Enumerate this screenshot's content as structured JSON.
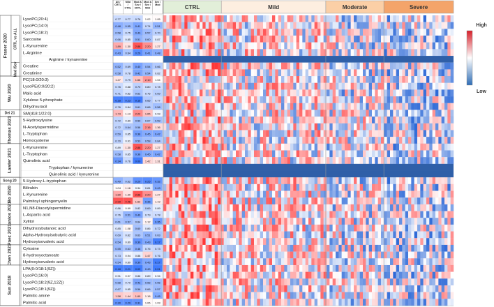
{
  "chart_data": {
    "type": "heatmap",
    "ratio_headers": [
      "All / CRTL",
      "Mild / CTRL",
      "Mod & Sev / CRTL",
      "Mod & Sev / Mild",
      "Sev / Mod"
    ],
    "groups": [
      "CTRL",
      "Mild",
      "Moderate",
      "Severe"
    ],
    "group_colors": [
      "#e2efd9",
      "#fdeee0",
      "#fbcfa6",
      "#f4a46a"
    ],
    "legend": {
      "high": "High",
      "low": "Low",
      "high_color": "#d6202a",
      "low_color": "#2f6db5"
    },
    "row_labels": [
      "LysoPC(20:4)",
      "LysoPC(14:0)",
      "LysoPC(18:2)",
      "Sarcosine",
      "L-Kynurenine",
      "L-Arginine",
      "Arginine / kynurenine",
      "Creatine",
      "Creatinine",
      "PC(18:0/20:3)",
      "LysoPE(0:0/20:2)",
      "Malic acid",
      "Xylulose 5-phosphate",
      "Dihydrouracil",
      "SM(d18:1/22:0)",
      "5-Hydroxylysine",
      "N-Acetylspermidine",
      "L-Tryptophan",
      "Homocysteine",
      "L-Kynurenine",
      "L-Tryptophan",
      "Quinolinic acid",
      "Tryptophan / kynurenine",
      "Quinolinic acid / kynurenine",
      "5-Hydroxy-L-tryptophan",
      "Bilirubin",
      "L-Kynurenine",
      "Palmitoyl sphingomyelin",
      "N1,N8-Diacetylspermidine",
      "L-Aspartic acid",
      "Xylitol",
      "Dihydroxybutanoic acid",
      "Alpha-Hydroxyisobutyric acid",
      "Hydroxyisovaleric acid",
      "Cytosine",
      "8-hydroxyoctanoate",
      "Hydroxyisovaleric acid",
      "LPA(0:0/18:1(9Z))",
      "LysoPC(16:0)",
      "LysoPC(18:2(9Z,12Z))",
      "LysoPC(18:1(9Z))",
      "Palmitic amine",
      "Palmitic acid"
    ],
    "ratio_values": [
      [
        "0.77",
        "0.77",
        "0.76",
        "1.02",
        "1.05"
      ],
      [
        "0.48",
        "0.55",
        "0.41",
        "0.74",
        "0.51"
      ],
      [
        "0.58",
        "0.75",
        "0.43",
        "0.57",
        "0.70"
      ],
      [
        "0.66",
        "0.85",
        "0.51",
        "0.60",
        "0.87"
      ],
      [
        "1.89",
        "1.30",
        "2.88",
        "2.20",
        "1.27"
      ],
      [
        "0.43",
        "0.64",
        "0.26",
        "0.41",
        "0.48"
      ],
      [
        "",
        "",
        "",
        "",
        ""
      ],
      [
        "0.52",
        "0.69",
        "0.40",
        "0.54",
        "0.66"
      ],
      [
        "0.58",
        "0.78",
        "0.42",
        "0.54",
        "0.82"
      ],
      [
        "1.27",
        "0.79",
        "1.66",
        "2.10",
        "1.04"
      ],
      [
        "0.76",
        "0.88",
        "0.70",
        "0.80",
        "0.78"
      ],
      [
        "0.71",
        "0.82",
        "0.62",
        "0.76",
        "0.69"
      ],
      [
        "0.18",
        "0.23",
        "0.15",
        "0.65",
        "0.77"
      ],
      [
        "0.76",
        "0.84",
        "0.61",
        "0.68",
        "0.58"
      ],
      [
        "1.73",
        "1.13",
        "2.22",
        "1.65",
        "0.93"
      ],
      [
        "0.72",
        "0.89",
        "0.59",
        "0.67",
        "0.59"
      ],
      [
        "0.72",
        "0.64",
        "0.58",
        "2.16",
        "1.36"
      ],
      [
        "0.59",
        "0.85",
        "0.38",
        "0.45",
        "0.42"
      ],
      [
        "0.70",
        "0.91",
        "0.53",
        "0.58",
        "0.64"
      ],
      [
        "0.89",
        "1.30",
        "2.88",
        "2.20",
        "1.27"
      ],
      [
        "0.58",
        "0.85",
        "0.38",
        "0.45",
        "0.42"
      ],
      [
        "0.34",
        "0.76",
        "0.09",
        "1.42",
        "1.31"
      ],
      [
        "",
        "",
        "",
        "",
        ""
      ],
      [
        "",
        "",
        "",
        "",
        ""
      ],
      [
        "0.49",
        "0.62",
        "0.29",
        "0.25",
        "0.32"
      ],
      [
        "1.04",
        "1.16",
        "0.94",
        "0.81",
        "0.43"
      ],
      [
        "1.89",
        "1.30",
        "2.88",
        "2.20",
        "1.27"
      ],
      [
        "2.99",
        "4.46",
        "1.62",
        "0.36",
        "1.19"
      ],
      [
        "0.86",
        "0.99",
        "0.82",
        "0.69",
        "0.89"
      ],
      [
        "0.76",
        "0.51",
        "0.40",
        "0.79",
        "0.78"
      ],
      [
        "0.61",
        "0.57",
        "0.64",
        "1.12",
        "0.35"
      ],
      [
        "0.85",
        "1.08",
        "0.60",
        "0.86",
        "0.72"
      ],
      [
        "0.69",
        "0.82",
        "0.63",
        "0.51",
        "0.63"
      ],
      [
        "0.54",
        "0.89",
        "0.30",
        "0.43",
        "0.17"
      ],
      [
        "0.55",
        "0.63",
        "0.48",
        "0.76",
        "0.73"
      ],
      [
        "0.73",
        "0.94",
        "0.88",
        "1.47",
        "0.76"
      ],
      [
        "0.54",
        "0.89",
        "0.30",
        "0.43",
        "0.17"
      ],
      [
        "0.18",
        "0.21",
        "0.09",
        "0.43",
        "0.01"
      ],
      [
        "0.91",
        "0.97",
        "0.86",
        "0.89",
        "0.94"
      ],
      [
        "0.58",
        "0.79",
        "0.42",
        "0.56",
        "0.56"
      ],
      [
        "0.67",
        "0.85",
        "0.56",
        "0.66",
        "0.57"
      ],
      [
        "1.58",
        "1.44",
        "1.69",
        "1.18",
        "0.45"
      ],
      [
        "0.30",
        "0.29",
        "0.31",
        "1.06",
        "1.03"
      ]
    ],
    "study_blocks": [
      {
        "label": "Fraser 2020",
        "start": 0,
        "end": 8
      },
      {
        "label": "Wu 2020",
        "start": 9,
        "end": 13
      },
      {
        "label": "Dei 21",
        "start": 14,
        "end": 14
      },
      {
        "label": "Thomas 2021",
        "start": 15,
        "end": 18
      },
      {
        "label": "Lawler 2021",
        "start": 19,
        "end": 23
      },
      {
        "label": "Song 20",
        "start": 24,
        "end": 24
      },
      {
        "label": "Bo 2020",
        "start": 25,
        "end": 27
      },
      {
        "label": "Danlos 2021",
        "start": 28,
        "end": 30
      },
      {
        "label": "Paez 2021",
        "start": 31,
        "end": 33
      },
      {
        "label": "Chen 2021",
        "start": 34,
        "end": 36
      },
      {
        "label": "Sun 2018",
        "start": 37,
        "end": 42
      }
    ],
    "sub_blocks": [
      {
        "label": "CRTL vs ALL",
        "start": 0,
        "end": 6
      },
      {
        "label": "Mod /Sev",
        "start": 7,
        "end": 8
      }
    ]
  }
}
